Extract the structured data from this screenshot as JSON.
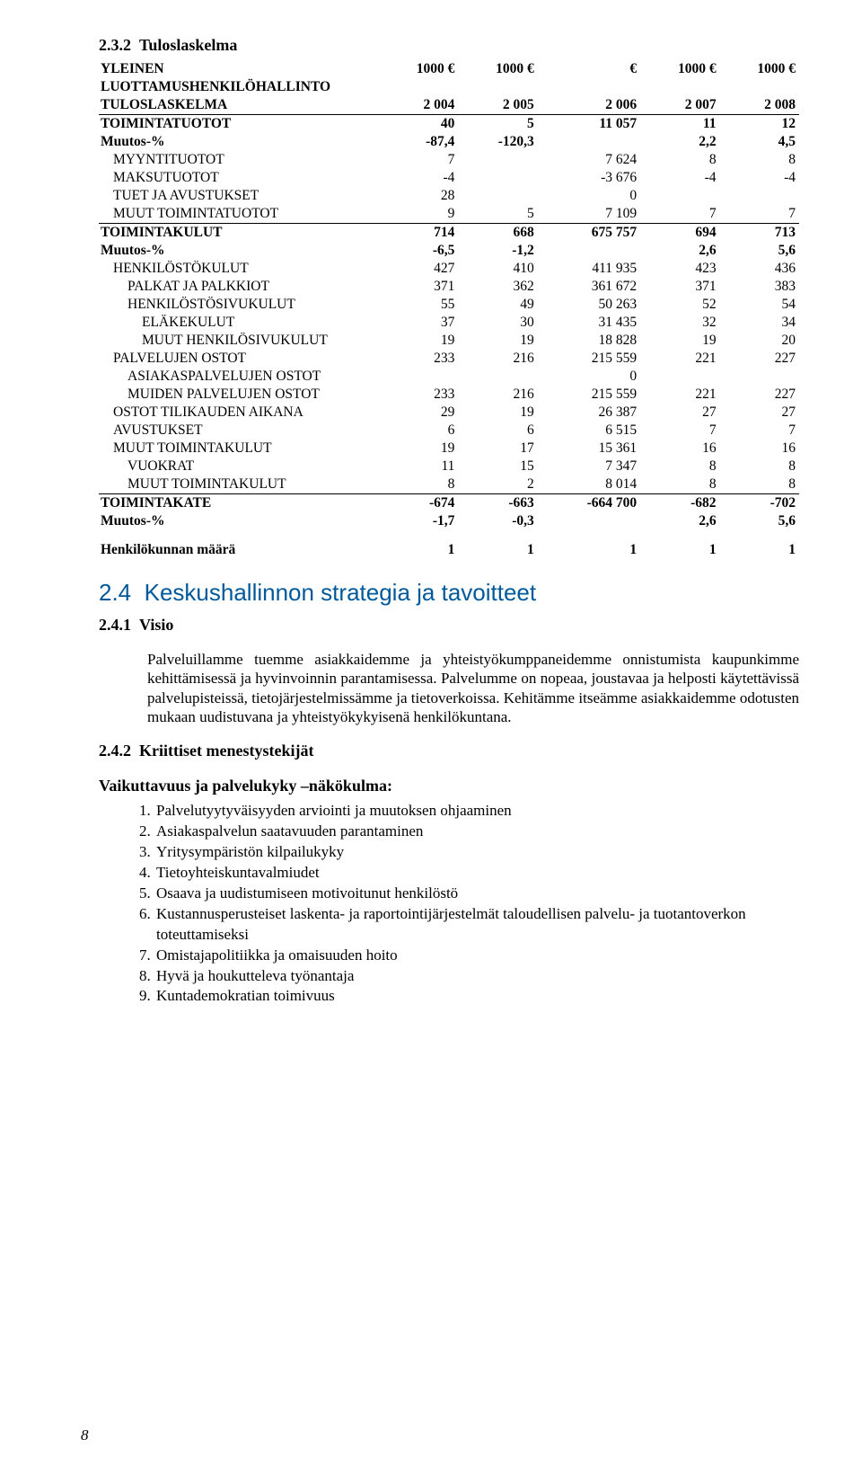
{
  "section": {
    "number": "2.3.2",
    "title": "Tuloslaskelma",
    "tableTitle1": "YLEINEN",
    "tableTitle2": "LUOTTAMUSHENKILÖHALLINTO",
    "tableSubtitle": "TULOSLASKELMA",
    "headers": {
      "unit": "1000 €",
      "eur": "€"
    },
    "years": [
      "2 004",
      "2 005",
      "2 006",
      "2 007",
      "2 008"
    ],
    "rows": [
      {
        "label": "TOIMINTATUOTOT",
        "vals": [
          "40",
          "5",
          "11 057",
          "11",
          "12"
        ],
        "bold": true
      },
      {
        "label": "Muutos-%",
        "vals": [
          "-87,4",
          "-120,3",
          "",
          "2,2",
          "4,5"
        ],
        "bold": true
      },
      {
        "label": "MYYNTITUOTOT",
        "vals": [
          "7",
          "",
          "7 624",
          "8",
          "8"
        ],
        "indent": 1
      },
      {
        "label": "MAKSUTUOTOT",
        "vals": [
          "-4",
          "",
          "-3 676",
          "-4",
          "-4"
        ],
        "indent": 1
      },
      {
        "label": "TUET JA AVUSTUKSET",
        "vals": [
          "28",
          "",
          "0",
          "",
          ""
        ],
        "indent": 1
      },
      {
        "label": "MUUT TOIMINTATUOTOT",
        "vals": [
          "9",
          "5",
          "7 109",
          "7",
          "7"
        ],
        "indent": 1,
        "underline": true
      },
      {
        "label": "TOIMINTAKULUT",
        "vals": [
          "714",
          "668",
          "675 757",
          "694",
          "713"
        ],
        "bold": true
      },
      {
        "label": "Muutos-%",
        "vals": [
          "-6,5",
          "-1,2",
          "",
          "2,6",
          "5,6"
        ],
        "bold": true
      },
      {
        "label": "HENKILÖSTÖKULUT",
        "vals": [
          "427",
          "410",
          "411 935",
          "423",
          "436"
        ],
        "indent": 1
      },
      {
        "label": "PALKAT JA PALKKIOT",
        "vals": [
          "371",
          "362",
          "361 672",
          "371",
          "383"
        ],
        "indent": 2
      },
      {
        "label": "HENKILÖSTÖSIVUKULUT",
        "vals": [
          "55",
          "49",
          "50 263",
          "52",
          "54"
        ],
        "indent": 2
      },
      {
        "label": "ELÄKEKULUT",
        "vals": [
          "37",
          "30",
          "31 435",
          "32",
          "34"
        ],
        "indent": 3
      },
      {
        "label": "MUUT HENKILÖSIVUKULUT",
        "vals": [
          "19",
          "19",
          "18 828",
          "19",
          "20"
        ],
        "indent": 3
      },
      {
        "label": "PALVELUJEN OSTOT",
        "vals": [
          "233",
          "216",
          "215 559",
          "221",
          "227"
        ],
        "indent": 1
      },
      {
        "label": "ASIAKASPALVELUJEN OSTOT",
        "vals": [
          "",
          "",
          "0",
          "",
          ""
        ],
        "indent": 2
      },
      {
        "label": "MUIDEN PALVELUJEN OSTOT",
        "vals": [
          "233",
          "216",
          "215 559",
          "221",
          "227"
        ],
        "indent": 2
      },
      {
        "label": "OSTOT TILIKAUDEN AIKANA",
        "vals": [
          "29",
          "19",
          "26 387",
          "27",
          "27"
        ],
        "indent": 1
      },
      {
        "label": "AVUSTUKSET",
        "vals": [
          "6",
          "6",
          "6 515",
          "7",
          "7"
        ],
        "indent": 1
      },
      {
        "label": "MUUT TOIMINTAKULUT",
        "vals": [
          "19",
          "17",
          "15 361",
          "16",
          "16"
        ],
        "indent": 1
      },
      {
        "label": "VUOKRAT",
        "vals": [
          "11",
          "15",
          "7 347",
          "8",
          "8"
        ],
        "indent": 2
      },
      {
        "label": "MUUT TOIMINTAKULUT",
        "vals": [
          "8",
          "2",
          "8 014",
          "8",
          "8"
        ],
        "indent": 2,
        "underline": true
      },
      {
        "label": "TOIMINTAKATE",
        "vals": [
          "-674",
          "-663",
          "-664 700",
          "-682",
          "-702"
        ],
        "bold": true
      },
      {
        "label": "Muutos-%",
        "vals": [
          "-1,7",
          "-0,3",
          "",
          "2,6",
          "5,6"
        ],
        "bold": true
      }
    ],
    "staffRow": {
      "label": "Henkilökunnan määrä",
      "vals": [
        "1",
        "1",
        "1",
        "1",
        "1"
      ],
      "bold": true
    }
  },
  "strategy": {
    "headingNum": "2.4",
    "headingText": "Keskushallinnon strategia ja tavoitteet",
    "visioNum": "2.4.1",
    "visioTitle": "Visio",
    "visioBody": "Palveluillamme tuemme asiakkaidemme ja yhteistyökumppaneidemme onnistumista kaupunkimme kehittämisessä ja hyvinvoinnin parantamisessa. Palvelumme on nopeaa, joustavaa ja helposti käytettävissä palvelupisteissä, tietojärjestelmissämme ja tietoverkoissa. Kehitämme itseämme asiakkaidemme odotusten mukaan uudistuvana ja yhteistyökykyisenä henkilökuntana.",
    "kritNum": "2.4.2",
    "kritTitle": "Kriittiset menestystekijät",
    "listHeading": "Vaikuttavuus ja palvelukyky –näkökulma:",
    "items": [
      "Palvelutyytyväisyyden arviointi ja muutoksen ohjaaminen",
      "Asiakaspalvelun saatavuuden parantaminen",
      "Yritysympäristön kilpailukyky",
      "Tietoyhteiskuntavalmiudet",
      "Osaava ja uudistumiseen motivoitunut henkilöstö",
      "Kustannusperusteiset laskenta- ja raportointijärjestelmät taloudellisen palvelu- ja tuotantoverkon toteuttamiseksi",
      "Omistajapolitiikka ja omaisuuden hoito",
      "Hyvä ja houkutteleva työnantaja",
      "Kuntademokratian toimivuus"
    ]
  },
  "pageNumber": "8",
  "colors": {
    "blue": "#00599a"
  }
}
